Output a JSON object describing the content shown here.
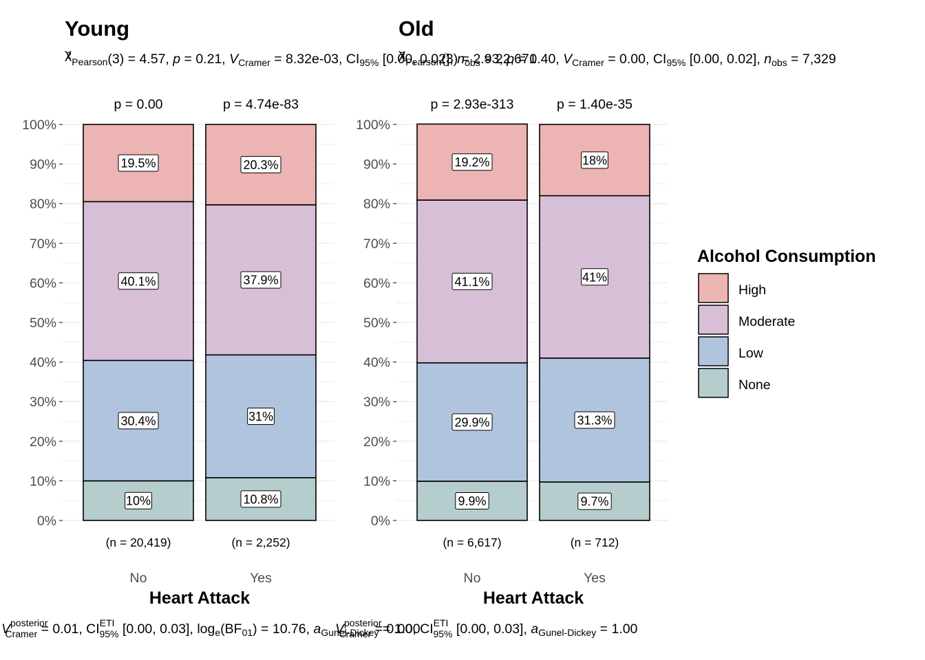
{
  "chart_data": {
    "type": "bar",
    "stacked": true,
    "legend": {
      "title": "Alcohol Consumption",
      "position": "right",
      "items": [
        {
          "name": "High",
          "color": "#ecb4b2"
        },
        {
          "name": "Moderate",
          "color": "#d8bfd8"
        },
        {
          "name": "Low",
          "color": "#b0c4de"
        },
        {
          "name": "None",
          "color": "#b5cdcc"
        }
      ]
    },
    "y_ticks": [
      "0%",
      "10%",
      "20%",
      "30%",
      "40%",
      "50%",
      "60%",
      "70%",
      "80%",
      "90%",
      "100%"
    ],
    "ylim": [
      0,
      100
    ],
    "grid": true,
    "panels": [
      {
        "title": "Young",
        "subtitle": "χ²Pearson(3) = 4.57, p = 0.21, V̂Cramer = 8.32e-03, CI95% [0.00, 0.02], nobs = 22,671",
        "caption": "V̂posterior Cramer = 0.01, CIETI 95% [0.00, 0.03], log e(BF01) = 10.76, aGunel-Dickey = 1.00",
        "xlabel": "Heart Attack",
        "categories": [
          "No",
          "Yes"
        ],
        "p_values": [
          "p = 0.00",
          "p = 4.74e-83"
        ],
        "n_labels": [
          "(n = 20,419)",
          "(n = 2,252)"
        ],
        "series": [
          {
            "name": "None",
            "values": [
              10.0,
              10.8
            ],
            "labels": [
              "10%",
              "10.8%"
            ]
          },
          {
            "name": "Low",
            "values": [
              30.4,
              31.0
            ],
            "labels": [
              "30.4%",
              "31%"
            ]
          },
          {
            "name": "Moderate",
            "values": [
              40.1,
              37.9
            ],
            "labels": [
              "40.1%",
              "37.9%"
            ]
          },
          {
            "name": "High",
            "values": [
              19.5,
              20.3
            ],
            "labels": [
              "19.5%",
              "20.3%"
            ]
          }
        ]
      },
      {
        "title": "Old",
        "subtitle": "χ²Pearson(3) = 2.93, p = 0.40, V̂Cramer = 0.00, CI95% [0.00, 0.02], nobs = 7,329",
        "caption": "V̂posterior Cramer = 0.00, CIETI 95% [0.00, 0.03], aGunel-Dickey = 1.00",
        "xlabel": "Heart Attack",
        "categories": [
          "No",
          "Yes"
        ],
        "p_values": [
          "p = 2.93e-313",
          "p = 1.40e-35"
        ],
        "n_labels": [
          "(n = 6,617)",
          "(n = 712)"
        ],
        "series": [
          {
            "name": "None",
            "values": [
              9.9,
              9.7
            ],
            "labels": [
              "9.9%",
              "9.7%"
            ]
          },
          {
            "name": "Low",
            "values": [
              29.9,
              31.3
            ],
            "labels": [
              "29.9%",
              "31.3%"
            ]
          },
          {
            "name": "Moderate",
            "values": [
              41.1,
              41.0
            ],
            "labels": [
              "41.1%",
              "41%"
            ]
          },
          {
            "name": "High",
            "values": [
              19.2,
              18.0
            ],
            "labels": [
              "19.2%",
              "18%"
            ]
          }
        ]
      }
    ]
  }
}
